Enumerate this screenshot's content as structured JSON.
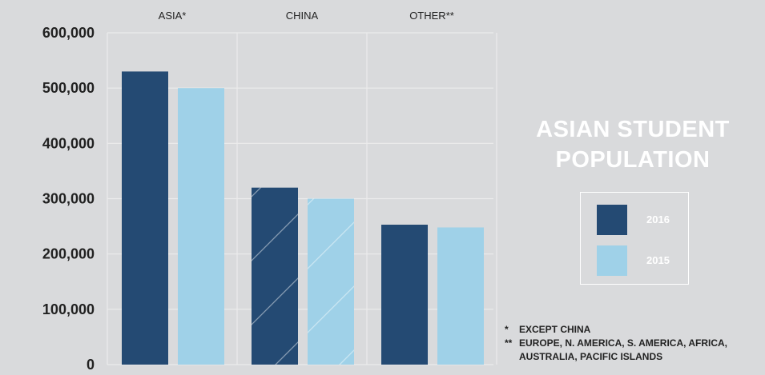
{
  "chart_data": {
    "type": "bar",
    "title": "ASIAN STUDENT POPULATION",
    "categories": [
      "ASIA*",
      "CHINA",
      "OTHER**"
    ],
    "series": [
      {
        "name": "2016",
        "values": [
          530000,
          320000,
          253000
        ],
        "color": "#244a73"
      },
      {
        "name": "2015",
        "values": [
          500000,
          300000,
          248000
        ],
        "color": "#9fd1e8"
      }
    ],
    "hatched_category": "CHINA",
    "ylim": [
      0,
      600000
    ],
    "yticks": [
      0,
      100000,
      200000,
      300000,
      400000,
      500000,
      600000
    ],
    "ytick_labels": [
      "0",
      "100,000",
      "200,000",
      "300,000",
      "400,000",
      "500,000",
      "600,000"
    ],
    "xlabel": "",
    "ylabel": "",
    "grid": true,
    "legend_position": "right"
  },
  "footnotes": [
    {
      "mark": "*",
      "text": "EXCEPT CHINA"
    },
    {
      "mark": "**",
      "text": "EUROPE, N. AMERICA, S. AMERICA, AFRICA, AUSTRALIA, PACIFIC ISLANDS"
    }
  ],
  "colors": {
    "background": "#d9dadc",
    "grid": "#ececec",
    "text": "#222222",
    "title": "#ffffff"
  }
}
